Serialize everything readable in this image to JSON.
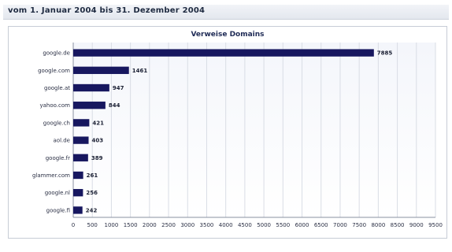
{
  "header": {
    "date_range": "vom 1. Januar 2004  bis 31. Dezember 2004"
  },
  "colors": {
    "bar": "#17175f",
    "grid": "#d9dde5",
    "plot_background_top": "#f4f6fb",
    "plot_background_bottom": "#ffffff"
  },
  "chart_data": {
    "type": "bar",
    "orientation": "horizontal",
    "title": "Verweise Domains",
    "xlabel": "",
    "ylabel": "",
    "categories": [
      "google.de",
      "google.com",
      "google.at",
      "yahoo.com",
      "google.ch",
      "aol.de",
      "google.fr",
      "glammer.com",
      "google.nl",
      "google.fi"
    ],
    "values": [
      7885,
      1461,
      947,
      844,
      421,
      403,
      389,
      261,
      256,
      242
    ],
    "xlim": [
      0,
      9500
    ],
    "xticks": [
      0,
      500,
      1000,
      1500,
      2000,
      2500,
      3000,
      3500,
      4000,
      4500,
      5000,
      5500,
      6000,
      6500,
      7000,
      7500,
      8000,
      8500,
      9000,
      9500
    ],
    "grid": true,
    "legend": "none"
  }
}
